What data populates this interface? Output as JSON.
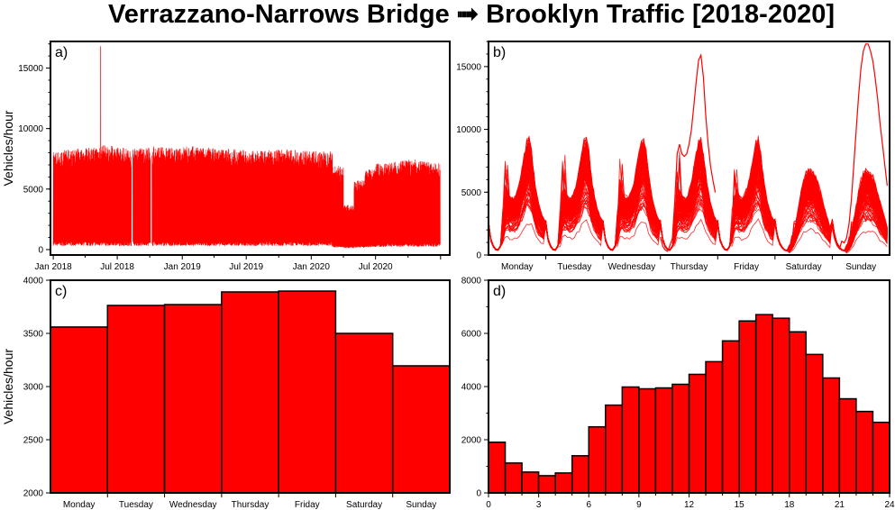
{
  "title": "Verrazzano-Narrows Bridge ➟ Brooklyn Traffic [2018-2020]",
  "colors": {
    "series": "#ff0000",
    "axis": "#000000",
    "background": "#ffffff"
  },
  "chart_data": [
    {
      "panel": "a)",
      "type": "line",
      "ylabel": "Vehicles/hour",
      "xlim": [
        "2017-12-24",
        "2021-01-27"
      ],
      "ylim": [
        -450,
        17200
      ],
      "yticks": [
        0,
        5000,
        10000,
        15000
      ],
      "yticklabels": [
        "0",
        "5000",
        "10000",
        "15000"
      ],
      "xticklabels": [
        "Jan 2018",
        "Jul 2018",
        "Jan 2019",
        "Jul 2019",
        "Jan 2020",
        "Jul 2020"
      ],
      "xtickdates": [
        "2018-01-01",
        "2018-07-01",
        "2019-01-01",
        "2019-07-01",
        "2020-01-01",
        "2020-07-01"
      ],
      "months": [
        "2018-01",
        "2018-02",
        "2018-03",
        "2018-04",
        "2018-05",
        "2018-06",
        "2018-07",
        "2018-08",
        "2018-09",
        "2018-10",
        "2018-11",
        "2018-12",
        "2019-01",
        "2019-02",
        "2019-03",
        "2019-04",
        "2019-05",
        "2019-06",
        "2019-07",
        "2019-08",
        "2019-09",
        "2019-10",
        "2019-11",
        "2019-12",
        "2020-01",
        "2020-02",
        "2020-03",
        "2020-04",
        "2020-05",
        "2020-06",
        "2020-07",
        "2020-08",
        "2020-09",
        "2020-10",
        "2020-11",
        "2020-12"
      ],
      "monthly_max": [
        8000,
        8100,
        8200,
        8300,
        8500,
        8400,
        8300,
        8200,
        8300,
        8400,
        8300,
        8200,
        8400,
        8300,
        8300,
        8200,
        8200,
        8100,
        8000,
        8000,
        8100,
        8200,
        8100,
        8000,
        8000,
        8000,
        6800,
        3600,
        5600,
        6500,
        7000,
        7100,
        7200,
        7300,
        7200,
        7000
      ],
      "monthly_min": [
        500,
        500,
        500,
        500,
        500,
        500,
        500,
        500,
        500,
        500,
        500,
        500,
        500,
        500,
        500,
        500,
        500,
        500,
        500,
        500,
        500,
        500,
        500,
        500,
        500,
        500,
        300,
        200,
        250,
        300,
        350,
        400,
        400,
        400,
        400,
        400
      ],
      "peak": {
        "date": "2018-05-15",
        "value": 16800
      },
      "gaps": [
        [
          "2018-08-10",
          "2018-08-14"
        ],
        [
          "2018-10-03",
          "2018-10-07"
        ]
      ]
    },
    {
      "panel": "b)",
      "type": "line",
      "ylim": [
        0,
        17000
      ],
      "yticks": [
        0,
        5000,
        10000,
        15000
      ],
      "yticklabels": [
        "0",
        "5000",
        "10000",
        "15000"
      ],
      "categories": [
        "Monday",
        "Tuesday",
        "Wednesday",
        "Thursday",
        "Friday",
        "Saturday",
        "Sunday"
      ],
      "weekday_hourly_profile": [
        2500,
        1200,
        700,
        450,
        400,
        700,
        2200,
        4200,
        4600,
        4200,
        4100,
        4200,
        4600,
        5200,
        6200,
        7200,
        8100,
        8300,
        7400,
        5800,
        4600,
        3700,
        3100,
        2600
      ],
      "weekend_hourly_profile": [
        2600,
        1500,
        900,
        600,
        400,
        350,
        500,
        900,
        1600,
        2600,
        3600,
        4600,
        5400,
        5900,
        6100,
        6100,
        5900,
        5600,
        5100,
        4500,
        3800,
        3200,
        2600,
        2000
      ],
      "weeks": 150,
      "scale_range": [
        0.3,
        1.05
      ],
      "outliers": [
        {
          "day": "Thursday",
          "peak": 15900
        },
        {
          "day": "Sunday",
          "peak": 16800
        }
      ]
    },
    {
      "panel": "c)",
      "type": "bar",
      "ylabel": "Vehicles/hour",
      "categories": [
        "Monday",
        "Tuesday",
        "Wednesday",
        "Thursday",
        "Friday",
        "Saturday",
        "Sunday"
      ],
      "values": [
        3560,
        3763,
        3771,
        3890,
        3898,
        3500,
        3195
      ],
      "ylim": [
        2000,
        4000
      ],
      "yticks": [
        2000,
        2500,
        3000,
        3500,
        4000
      ],
      "yticklabels": [
        "2000",
        "2500",
        "3000",
        "3500",
        "4000"
      ]
    },
    {
      "panel": "d)",
      "type": "bar",
      "categories": [
        0,
        1,
        2,
        3,
        4,
        5,
        6,
        7,
        8,
        9,
        10,
        11,
        12,
        13,
        14,
        15,
        16,
        17,
        18,
        19,
        20,
        21,
        22,
        23
      ],
      "values": [
        1906,
        1123,
        783,
        647,
        749,
        1396,
        2485,
        3302,
        3983,
        3915,
        3949,
        4085,
        4459,
        4936,
        5718,
        6467,
        6706,
        6570,
        6059,
        5208,
        4323,
        3540,
        3064,
        2655
      ],
      "xlim": [
        0,
        24
      ],
      "ylim": [
        0,
        8000
      ],
      "xticks": [
        0,
        3,
        6,
        9,
        12,
        15,
        18,
        21,
        24
      ],
      "xticklabels": [
        "0",
        "3",
        "6",
        "9",
        "12",
        "15",
        "18",
        "21",
        "24"
      ],
      "yticks": [
        0,
        2000,
        4000,
        6000,
        8000
      ],
      "yticklabels": [
        "0",
        "2000",
        "4000",
        "6000",
        "8000"
      ]
    }
  ]
}
